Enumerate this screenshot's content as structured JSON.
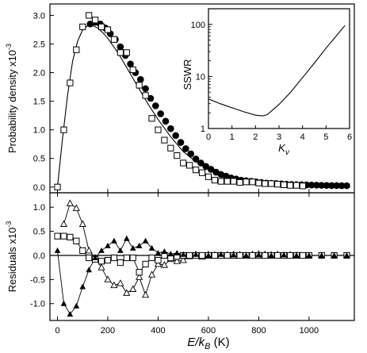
{
  "chart_data": [
    {
      "id": "main",
      "type": "scatter",
      "ylabel": "Probability density x10",
      "ylabel_exp": "-3",
      "xlim": [
        0,
        1180
      ],
      "ylim": [
        -0.1,
        3.2
      ],
      "y_ticks": [
        "0.0",
        "0.5",
        "1.0",
        "1.5",
        "2.0",
        "2.5",
        "3.0"
      ],
      "fit_curve": {
        "x": [
          0,
          20,
          40,
          60,
          80,
          100,
          120,
          140,
          160,
          180,
          200,
          240,
          280,
          320,
          360,
          400,
          450,
          500,
          550,
          600,
          650,
          700,
          750,
          800,
          850,
          900,
          950,
          1000,
          1050,
          1100,
          1160
        ],
        "y": [
          0,
          0.85,
          1.6,
          2.2,
          2.55,
          2.75,
          2.82,
          2.82,
          2.78,
          2.7,
          2.6,
          2.35,
          2.05,
          1.75,
          1.45,
          1.18,
          0.88,
          0.62,
          0.44,
          0.32,
          0.23,
          0.17,
          0.13,
          0.1,
          0.08,
          0.06,
          0.05,
          0.04,
          0.035,
          0.03,
          0.02
        ]
      },
      "series": [
        {
          "marker": "open-square",
          "x": [
            0,
            25,
            50,
            75,
            100,
            125,
            150,
            175,
            200,
            225,
            250,
            275,
            300,
            325,
            350,
            375,
            400,
            425,
            450,
            475,
            500,
            525,
            550,
            575,
            600,
            625,
            650,
            675,
            700,
            725,
            750,
            775,
            800,
            825,
            850,
            875,
            900,
            925,
            950,
            975
          ],
          "y": [
            0.0,
            1.0,
            1.82,
            2.4,
            2.8,
            3.0,
            2.92,
            2.8,
            2.75,
            2.58,
            2.35,
            2.35,
            2.05,
            1.78,
            1.6,
            1.2,
            1.0,
            0.82,
            0.68,
            0.55,
            0.42,
            0.38,
            0.3,
            0.25,
            0.18,
            0.12,
            0.1,
            0.1,
            0.1,
            0.08,
            0.09,
            0.09,
            0.07,
            0.06,
            0.06,
            0.05,
            0.04,
            0.03,
            0.03,
            0.02
          ]
        },
        {
          "marker": "filled-circle",
          "x": [
            130,
            150,
            170,
            190,
            210,
            230,
            250,
            270,
            290,
            310,
            330,
            350,
            370,
            390,
            410,
            430,
            450,
            470,
            490,
            510,
            530,
            550,
            570,
            590,
            610,
            630,
            650,
            670,
            690,
            710,
            730,
            750,
            770,
            790,
            810,
            830,
            850,
            870,
            890,
            910,
            930,
            950,
            970,
            990,
            1010,
            1030,
            1050,
            1070,
            1090,
            1110,
            1130,
            1150
          ],
          "y": [
            2.85,
            2.88,
            2.85,
            2.78,
            2.68,
            2.58,
            2.45,
            2.3,
            2.15,
            2.0,
            1.88,
            1.72,
            1.55,
            1.42,
            1.28,
            1.15,
            1.02,
            0.9,
            0.78,
            0.67,
            0.58,
            0.49,
            0.42,
            0.36,
            0.31,
            0.26,
            0.22,
            0.19,
            0.16,
            0.14,
            0.12,
            0.11,
            0.1,
            0.09,
            0.08,
            0.07,
            0.065,
            0.06,
            0.055,
            0.05,
            0.045,
            0.042,
            0.04,
            0.038,
            0.035,
            0.032,
            0.03,
            0.028,
            0.026,
            0.025,
            0.024,
            0.023
          ]
        }
      ]
    },
    {
      "id": "inset",
      "type": "line",
      "ylabel": "SSWR",
      "xlabel": "K",
      "xlabel_sub": "v",
      "xlim": [
        0,
        6
      ],
      "y_scale": "log",
      "ylim": [
        1,
        200
      ],
      "x_ticks": [
        "0",
        "1",
        "2",
        "3",
        "4",
        "5",
        "6"
      ],
      "y_ticks": [
        "1",
        "10",
        "100"
      ],
      "series": [
        {
          "x": [
            0,
            0.5,
            1,
            1.5,
            2,
            2.3,
            2.5,
            3,
            3.5,
            4,
            4.5,
            5,
            5.5,
            5.8
          ],
          "y": [
            3.7,
            3.0,
            2.5,
            2.1,
            1.8,
            1.75,
            1.85,
            2.9,
            5.0,
            9.5,
            18,
            35,
            65,
            95
          ]
        }
      ]
    },
    {
      "id": "residuals",
      "type": "line",
      "ylabel": "Residuals x10",
      "ylabel_exp": "-3",
      "xlabel": "E/k",
      "xlabel_sub": "B",
      "xlabel_unit": " (K)",
      "xlim": [
        -30,
        1180
      ],
      "ylim": [
        -1.35,
        1.3
      ],
      "x_ticks": [
        "0",
        "200",
        "400",
        "600",
        "800",
        "1000"
      ],
      "x_tick_values": [
        0,
        200,
        400,
        600,
        800,
        1000
      ],
      "y_ticks": [
        "-1.0",
        "-0.5",
        "0.0",
        "0.5",
        "1.0"
      ],
      "y_tick_values": [
        -1.0,
        -0.5,
        0.0,
        0.5,
        1.0
      ],
      "series": [
        {
          "marker": "open-triangle",
          "x": [
            25,
            50,
            75,
            100,
            125,
            150,
            175,
            200,
            225,
            250,
            275,
            300,
            325,
            350,
            375,
            400,
            425,
            450,
            475,
            500,
            525,
            550,
            575,
            600,
            625,
            650,
            675,
            700,
            725,
            750,
            775,
            800,
            825,
            850,
            875,
            900,
            925,
            950
          ],
          "y": [
            0.65,
            1.08,
            0.98,
            0.65,
            0.1,
            -0.05,
            -0.25,
            -0.5,
            -0.62,
            -0.58,
            -0.78,
            -0.7,
            -0.45,
            -0.82,
            -0.4,
            -0.18,
            -0.2,
            -0.08,
            -0.12,
            -0.1,
            -0.02,
            0.02,
            -0.03,
            0.02,
            0.01,
            0.0,
            0.01,
            0.02,
            0.01,
            0.0,
            0.02,
            0.03,
            0.02,
            0.01,
            0.02,
            0.0,
            0.01,
            0.0
          ]
        },
        {
          "marker": "open-square",
          "x": [
            0,
            25,
            50,
            75,
            100,
            125,
            150,
            175,
            200,
            225,
            250,
            275,
            300,
            325,
            350,
            375,
            400,
            425,
            450,
            475,
            500,
            525,
            550,
            575,
            600,
            625,
            650,
            675,
            700,
            725,
            750,
            775,
            800,
            825,
            850,
            875,
            900,
            925,
            950,
            975,
            1000,
            1050,
            1100,
            1150
          ],
          "y": [
            0.4,
            0.4,
            0.38,
            0.3,
            0.1,
            -0.05,
            -0.08,
            -0.12,
            -0.1,
            -0.05,
            -0.15,
            -0.05,
            -0.05,
            -0.35,
            -0.18,
            -0.05,
            -0.1,
            0.0,
            -0.05,
            -0.02,
            0.0,
            0.0,
            0.0,
            0.0,
            0.0,
            0.0,
            0.0,
            0.0,
            0.0,
            0.0,
            0.0,
            0.0,
            0.0,
            0.0,
            0.0,
            0.0,
            0.0,
            0.0,
            0.0,
            0.0,
            0.0,
            0.0,
            0.0,
            0.0
          ]
        },
        {
          "marker": "filled-triangle",
          "x": [
            0,
            25,
            50,
            75,
            100,
            125,
            150,
            175,
            200,
            225,
            250,
            275,
            300,
            325,
            350,
            375,
            400,
            425,
            450,
            475,
            500,
            550,
            600,
            650,
            700,
            750,
            800,
            850,
            900,
            950,
            1000,
            1050,
            1100,
            1150
          ],
          "y": [
            0.1,
            -1.0,
            -1.22,
            -1.05,
            -0.65,
            -0.3,
            -0.05,
            0.1,
            0.2,
            0.3,
            0.1,
            0.35,
            0.15,
            0.2,
            0.3,
            0.15,
            0.05,
            0.08,
            0.03,
            0.05,
            0.02,
            0.02,
            0.0,
            0.02,
            0.01,
            0.0,
            0.01,
            0.0,
            0.01,
            0.0,
            0.0,
            0.0,
            0.0,
            0.0
          ]
        }
      ]
    }
  ]
}
